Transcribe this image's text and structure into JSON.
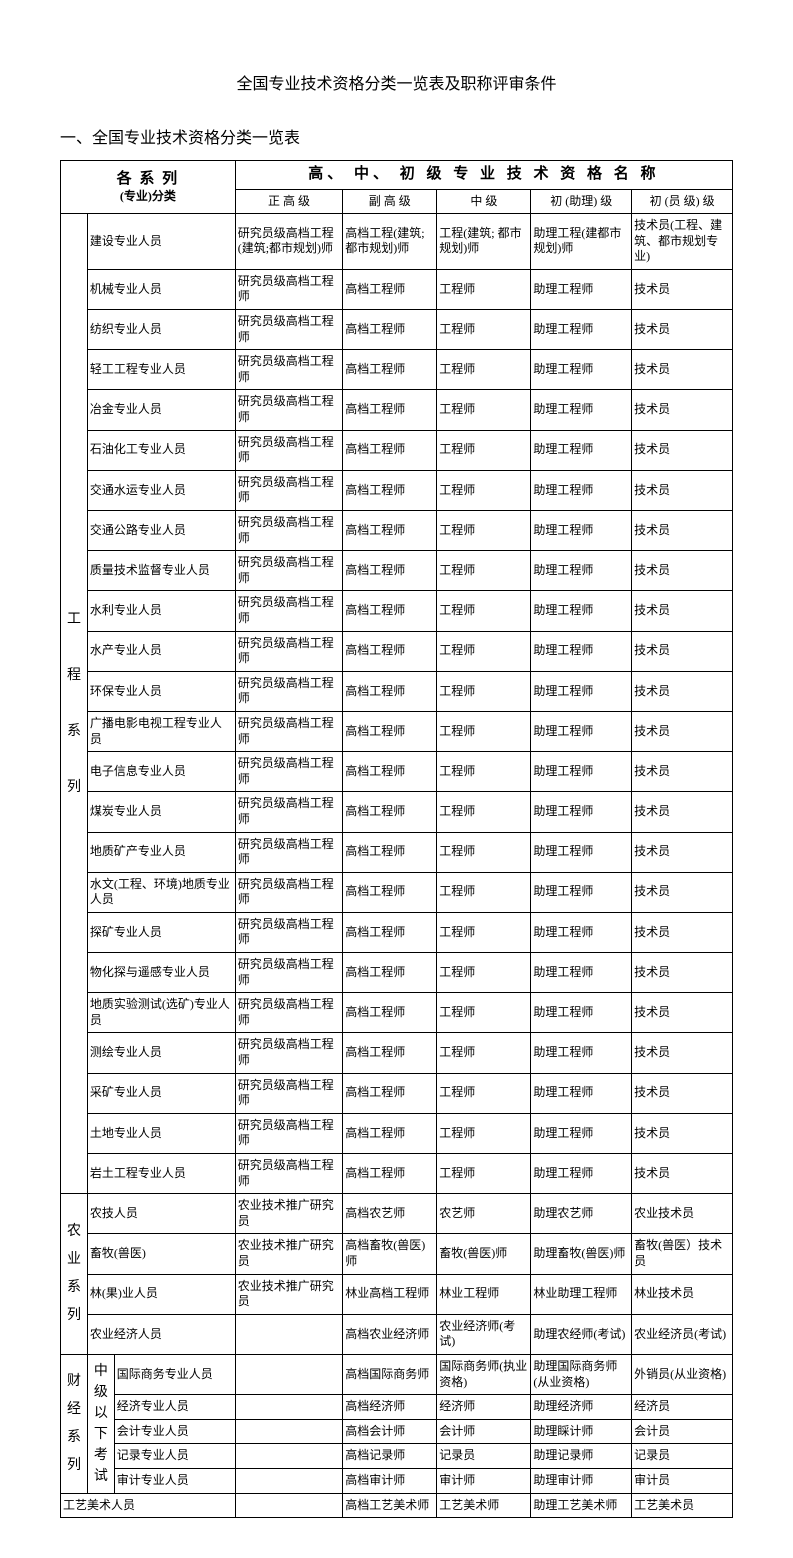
{
  "title": "全国专业技术资格分类一览表及职称评审条件",
  "section1": "一、全国专业技术资格分类一览表",
  "header": {
    "left1": "各  系  列",
    "left2": "(专业)分类",
    "group": "高、 中、 初  级  专  业  技  术  资  格    名  称",
    "c1": "正  高  级",
    "c2": "副 高 级",
    "c3": "中    级",
    "c4": "初  (助理)    级",
    "c5": "初  (员 级)  级"
  },
  "groups": [
    {
      "label": "工\n\n程\n\n系\n\n列",
      "rows": [
        {
          "name": "建设专业人员",
          "c1": "研究员级高档工程(建筑;都市规划)师",
          "c2": "高档工程(建筑;都市规划)师",
          "c3": "工程(建筑; 都市规划)师",
          "c4": "助理工程(建都市规划)师",
          "c5": "技术员(工程、建筑、都市规划专业)"
        },
        {
          "name": "机械专业人员",
          "c1": "研究员级高档工程师",
          "c2": "高档工程师",
          "c3": "工程师",
          "c4": "助理工程师",
          "c5": "技术员"
        },
        {
          "name": "纺织专业人员",
          "c1": "研究员级高档工程师",
          "c2": "高档工程师",
          "c3": "工程师",
          "c4": "助理工程师",
          "c5": "技术员"
        },
        {
          "name": "轻工工程专业人员",
          "c1": "研究员级高档工程师",
          "c2": "高档工程师",
          "c3": "工程师",
          "c4": "助理工程师",
          "c5": "技术员"
        },
        {
          "name": "冶金专业人员",
          "c1": "研究员级高档工程师",
          "c2": "高档工程师",
          "c3": "工程师",
          "c4": "助理工程师",
          "c5": "技术员"
        },
        {
          "name": "石油化工专业人员",
          "c1": "研究员级高档工程师",
          "c2": "高档工程师",
          "c3": "工程师",
          "c4": "助理工程师",
          "c5": "技术员"
        },
        {
          "name": "交通水运专业人员",
          "c1": "研究员级高档工程师",
          "c2": "高档工程师",
          "c3": "工程师",
          "c4": "助理工程师",
          "c5": "技术员"
        },
        {
          "name": "交通公路专业人员",
          "c1": "研究员级高档工程师",
          "c2": "高档工程师",
          "c3": "工程师",
          "c4": "助理工程师",
          "c5": "技术员"
        },
        {
          "name": "质量技术监督专业人员",
          "c1": "研究员级高档工程师",
          "c2": "高档工程师",
          "c3": "工程师",
          "c4": "助理工程师",
          "c5": "技术员"
        },
        {
          "name": "水利专业人员",
          "c1": "研究员级高档工程师",
          "c2": "高档工程师",
          "c3": "工程师",
          "c4": "助理工程师",
          "c5": "技术员"
        },
        {
          "name": "水产专业人员",
          "c1": "研究员级高档工程师",
          "c2": "高档工程师",
          "c3": "工程师",
          "c4": "助理工程师",
          "c5": "技术员"
        },
        {
          "name": "环保专业人员",
          "c1": "研究员级高档工程师",
          "c2": "高档工程师",
          "c3": "工程师",
          "c4": "助理工程师",
          "c5": "技术员"
        },
        {
          "name": "广播电影电视工程专业人员",
          "c1": "研究员级高档工程师",
          "c2": "高档工程师",
          "c3": "工程师",
          "c4": "助理工程师",
          "c5": "技术员"
        },
        {
          "name": "电子信息专业人员",
          "c1": "研究员级高档工程师",
          "c2": "高档工程师",
          "c3": "工程师",
          "c4": "助理工程师",
          "c5": "技术员"
        },
        {
          "name": "煤炭专业人员",
          "c1": "研究员级高档工程师",
          "c2": "高档工程师",
          "c3": "工程师",
          "c4": "助理工程师",
          "c5": "技术员"
        },
        {
          "name": "地质矿产专业人员",
          "c1": "研究员级高档工程师",
          "c2": "高档工程师",
          "c3": "工程师",
          "c4": "助理工程师",
          "c5": "技术员"
        },
        {
          "name": "水文(工程、环境)地质专业人员",
          "c1": "研究员级高档工程师",
          "c2": "高档工程师",
          "c3": "工程师",
          "c4": "助理工程师",
          "c5": "技术员"
        },
        {
          "name": "探矿专业人员",
          "c1": "研究员级高档工程师",
          "c2": "高档工程师",
          "c3": "工程师",
          "c4": "助理工程师",
          "c5": "技术员"
        },
        {
          "name": "物化探与遥感专业人员",
          "c1": "研究员级高档工程师",
          "c2": "高档工程师",
          "c3": "工程师",
          "c4": "助理工程师",
          "c5": "技术员"
        },
        {
          "name": "地质实验测试(选矿)专业人员",
          "c1": "研究员级高档工程师",
          "c2": "高档工程师",
          "c3": "工程师",
          "c4": "助理工程师",
          "c5": "技术员"
        },
        {
          "name": "测绘专业人员",
          "c1": "研究员级高档工程师",
          "c2": "高档工程师",
          "c3": "工程师",
          "c4": "助理工程师",
          "c5": "技术员"
        },
        {
          "name": "采矿专业人员",
          "c1": "研究员级高档工程师",
          "c2": "高档工程师",
          "c3": "工程师",
          "c4": "助理工程师",
          "c5": "技术员"
        },
        {
          "name": "土地专业人员",
          "c1": "研究员级高档工程师",
          "c2": "高档工程师",
          "c3": "工程师",
          "c4": "助理工程师",
          "c5": "技术员"
        },
        {
          "name": "岩土工程专业人员",
          "c1": "研究员级高档工程师",
          "c2": "高档工程师",
          "c3": "工程师",
          "c4": "助理工程师",
          "c5": "技术员"
        }
      ]
    },
    {
      "label": "农\n业\n系\n列",
      "rows": [
        {
          "name": "农技人员",
          "c1": "农业技术推广研究员",
          "c2": "高档农艺师",
          "c3": "农艺师",
          "c4": "助理农艺师",
          "c5": "农业技术员"
        },
        {
          "name": "畜牧(兽医)",
          "c1": "农业技术推广研究员",
          "c2": "高档畜牧(兽医)师",
          "c3": "畜牧(兽医)师",
          "c4": "助理畜牧(兽医)师",
          "c5": "畜牧(兽医）技术员"
        },
        {
          "name": "林(果)业人员",
          "c1": "农业技术推广研究员",
          "c2": "林业高档工程师",
          "c3": "林业工程师",
          "c4": "林业助理工程师",
          "c5": "林业技术员"
        },
        {
          "name": "农业经济人员",
          "c1": "",
          "c2": "高档农业经济师",
          "c3": "农业经济师(考试)",
          "c4": "助理农经师(考试)",
          "c5": "农业经济员(考试)"
        }
      ]
    }
  ],
  "finance": {
    "label": "财\n经\n系\n列",
    "sub1": "中\n级\n以\n下\n考\n试",
    "rows": [
      {
        "name": "国际商务专业人员",
        "c1": "",
        "c2": "高档国际商务师",
        "c3": "国际商务师(执业资格)",
        "c4": "助理国际商务师(从业资格)",
        "c5": "外销员(从业资格)"
      },
      {
        "name": "经济专业人员",
        "c1": "",
        "c2": "高档经济师",
        "c3": "经济师",
        "c4": "助理经济师",
        "c5": "经济员"
      },
      {
        "name": "会计专业人员",
        "c1": "",
        "c2": "高档会计师",
        "c3": "会计师",
        "c4": "助理睬计师",
        "c5": "会计员"
      },
      {
        "name": "记录专业人员",
        "c1": "",
        "c2": "高档记录师",
        "c3": "记录员",
        "c4": "助理记录师",
        "c5": "记录员"
      },
      {
        "name": "审计专业人员",
        "c1": "",
        "c2": "高档审计师",
        "c3": "审计师",
        "c4": "助理审计师",
        "c5": "审计员"
      }
    ]
  },
  "lastRow": {
    "name": "工艺美术人员",
    "c1": "",
    "c2": "高档工艺美术师",
    "c3": "工艺美术师",
    "c4": "助理工艺美术师",
    "c5": "工艺美术员"
  },
  "cols": {
    "w0": "4%",
    "w1": "4%",
    "w2": "18%",
    "c1": "16%",
    "c2": "14%",
    "c3": "14%",
    "c4": "15%",
    "c5": "15%"
  },
  "style": {
    "border": "#000000",
    "bg": "#ffffff",
    "font": "SimSun",
    "body_fs": 12,
    "title_fs": 16
  }
}
